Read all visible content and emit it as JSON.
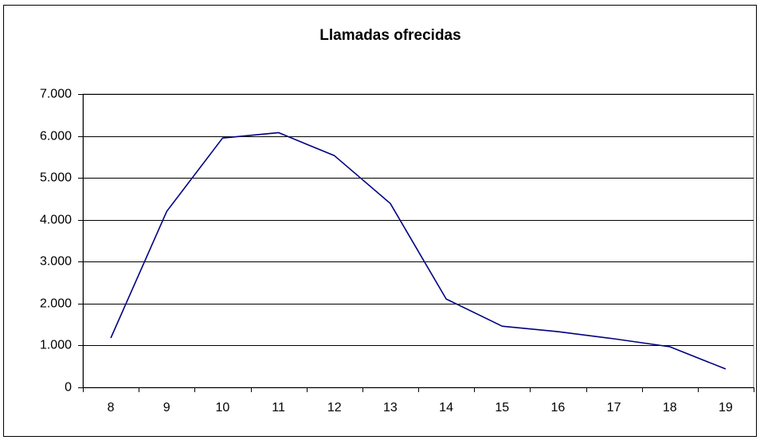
{
  "chart_data": {
    "type": "line",
    "title": "Llamadas ofrecidas",
    "categories": [
      "8",
      "9",
      "10",
      "11",
      "12",
      "13",
      "14",
      "15",
      "16",
      "17",
      "18",
      "19"
    ],
    "series": [
      {
        "name": "Llamadas ofrecidas",
        "color": "#000080",
        "values": [
          1180,
          4200,
          5950,
          6080,
          5530,
          4390,
          2110,
          1460,
          1330,
          1160,
          970,
          440
        ]
      }
    ],
    "ylim": [
      0,
      7000
    ],
    "yticks": [
      0,
      {
        "value": 1000,
        "label": "1.000"
      },
      {
        "value": 2000,
        "label": "2.000"
      },
      {
        "value": 3000,
        "label": "3.000"
      },
      {
        "value": 4000,
        "label": "4.000"
      },
      {
        "value": 5000,
        "label": "5.000"
      },
      {
        "value": 6000,
        "label": "6.000"
      },
      {
        "value": 7000,
        "label": "7.000"
      }
    ],
    "grid": true,
    "legend": false
  }
}
